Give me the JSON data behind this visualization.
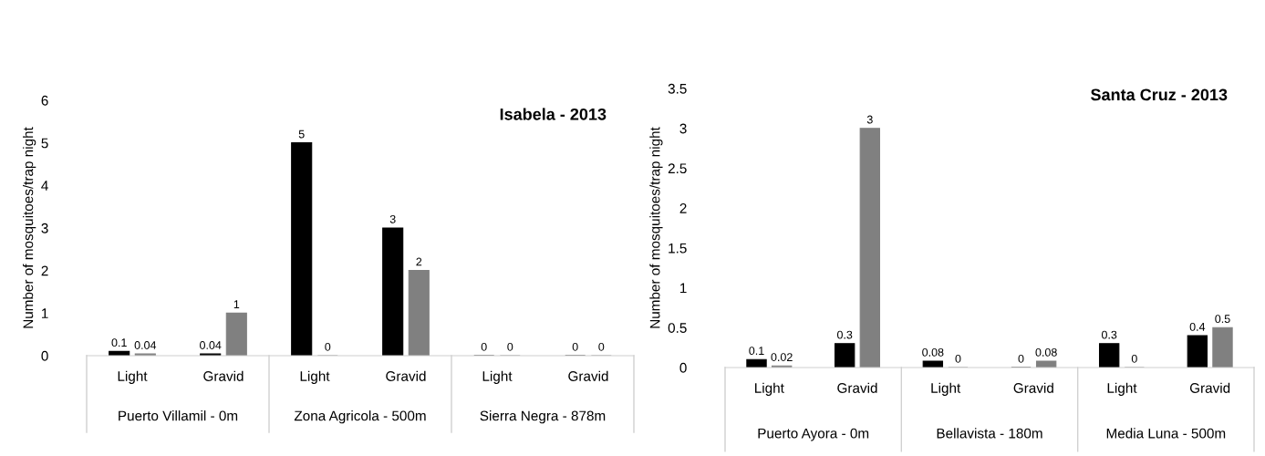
{
  "chart_data": [
    {
      "type": "bar",
      "title": "Isabela - 2013",
      "ylabel": "Number of mosquitoes/trap night",
      "categories": [
        "Light",
        "Gravid",
        "Light",
        "Gravid",
        "Light",
        "Gravid"
      ],
      "annotations": [
        "Puerto Villamil - 0m",
        "Zona Agricola - 500m",
        "Sierra Negra - 878m"
      ],
      "series": [
        {
          "color": "#000000",
          "values": [
            0.1,
            0.04,
            5,
            3,
            0,
            0
          ]
        },
        {
          "color": "#808080",
          "values": [
            0.04,
            1,
            0,
            2,
            0,
            0
          ]
        }
      ],
      "ylim": [
        0,
        6
      ],
      "yticks": [
        0,
        1,
        2,
        3,
        4,
        5,
        6
      ],
      "data_labels": true
    },
    {
      "type": "bar",
      "title": "Santa Cruz - 2013",
      "ylabel": "Number of mosquitoes/trap night",
      "categories": [
        "Light",
        "Gravid",
        "Light",
        "Gravid",
        "Light",
        "Gravid"
      ],
      "annotations": [
        "Puerto Ayora - 0m",
        "Bellavista - 180m",
        "Media Luna - 500m"
      ],
      "series": [
        {
          "color": "#000000",
          "values": [
            0.1,
            0.3,
            0.08,
            0,
            0.3,
            0.4
          ]
        },
        {
          "color": "#808080",
          "values": [
            0.02,
            3,
            0,
            0.08,
            0,
            0.5
          ]
        }
      ],
      "ylim": [
        0,
        3.5
      ],
      "yticks": [
        0,
        {
          "value": 0.5,
          "label": "0.5"
        },
        1,
        {
          "value": 1.5,
          "label": "1.5"
        },
        2,
        {
          "value": 2.5,
          "label": "2.5"
        },
        3,
        {
          "value": 3.5,
          "label": "3.5"
        }
      ],
      "data_labels": true
    }
  ]
}
